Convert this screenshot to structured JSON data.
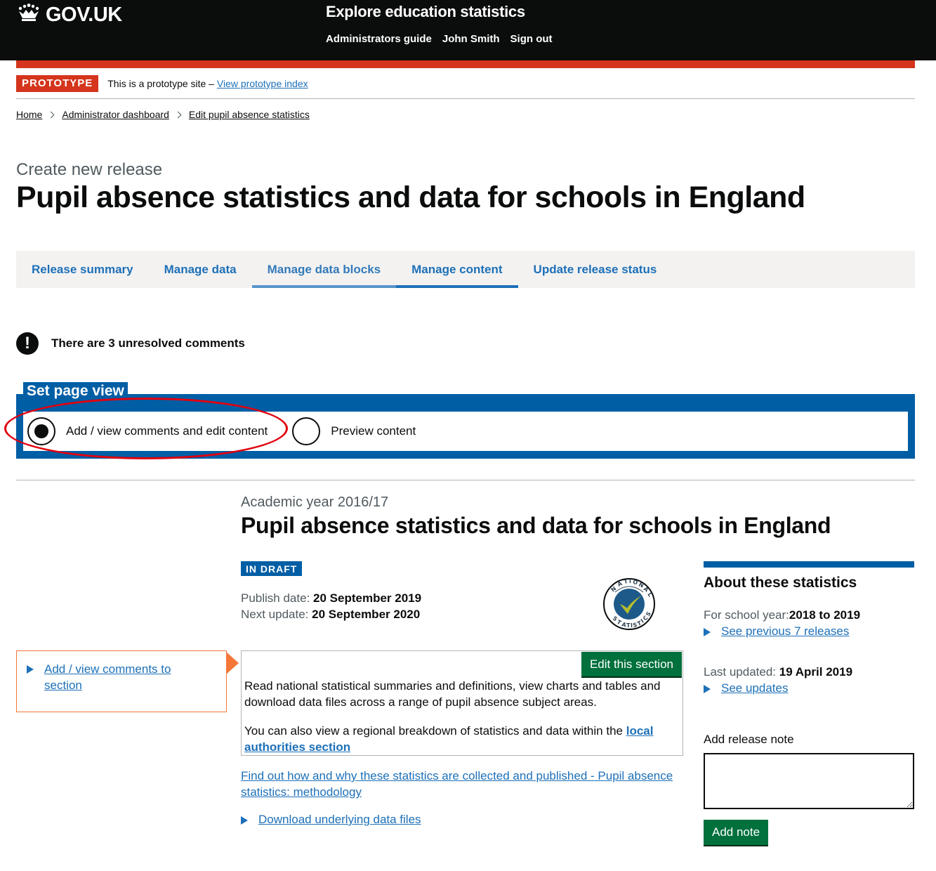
{
  "header": {
    "logo_text": "GOV.UK",
    "logo_icon": "crown-icon",
    "service_name": "Explore education statistics",
    "nav": [
      "Administrators guide",
      "John Smith",
      "Sign out"
    ]
  },
  "phase_banner": {
    "tag": "PROTOTYPE",
    "text": "This is a prototype site –",
    "link": "View prototype index"
  },
  "breadcrumbs": [
    "Home",
    "Administrator dashboard",
    "Edit pupil absence statistics"
  ],
  "page": {
    "caption": "Create new release",
    "title": "Pupil absence statistics and data for schools in England"
  },
  "tabs": [
    {
      "label": "Release summary"
    },
    {
      "label": "Manage data"
    },
    {
      "label": "Manage data blocks"
    },
    {
      "label": "Manage content"
    },
    {
      "label": "Update release status"
    }
  ],
  "warning": {
    "icon": "exclamation-icon",
    "text": "There are 3 unresolved comments"
  },
  "page_view": {
    "legend": "Set page view",
    "options": [
      {
        "label": "Add / view comments and edit content",
        "selected": true
      },
      {
        "label": "Preview content",
        "selected": false
      }
    ]
  },
  "release": {
    "caption": "Academic year 2016/17",
    "title": "Pupil absence statistics and data for schools in England",
    "status_tag": "IN DRAFT",
    "publish_label": "Publish date:",
    "publish_date": "20 September 2019",
    "next_label": "Next update:",
    "next_date": "20 September 2020",
    "badge": "national-statistics-badge"
  },
  "comment_box": {
    "link": "Add / view comments to section"
  },
  "section": {
    "edit_button": "Edit this section",
    "para1": "Read national statistical summaries and definitions, view charts and tables and download data files across a range of pupil absence subject areas.",
    "para2_text": "You can also view a regional breakdown of statistics and data within the",
    "para2_link": "local authorities section"
  },
  "methodology_link": "Find out how and why these statistics are collected and published - Pupil absence statistics: methodology",
  "download_link": "Download underlying data files",
  "aside": {
    "title": "About these statistics",
    "school_year_label": "For school year:",
    "school_year": "2018 to 2019",
    "previous_link": "See previous 7 releases",
    "updated_label": "Last updated:",
    "updated": "19 April 2019",
    "updates_link": "See updates"
  },
  "release_note": {
    "label": "Add release note",
    "button": "Add note"
  },
  "colors": {
    "brand_blue": "#005ea5",
    "link": "#1d70b8",
    "prototype_red": "#d4351c",
    "button_green": "#00703c",
    "comment_orange": "#f47738",
    "annotation_red": "#e1000f"
  }
}
